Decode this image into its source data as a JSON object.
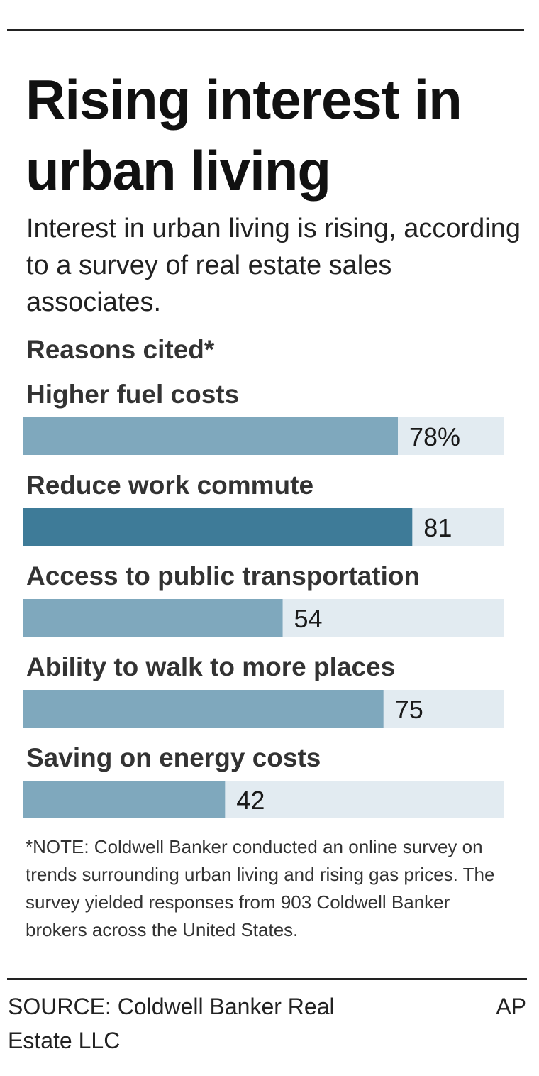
{
  "title": "Rising interest in urban living",
  "subtitle": "Interest in urban living is rising, according to a survey of real estate sales associates.",
  "section_label": "Reasons cited*",
  "note": "*NOTE: Coldwell Banker conducted an online survey on trends surrounding urban living and rising gas prices. The survey yielded responses from 903 Coldwell Banker brokers across the United States.",
  "source": "SOURCE: Coldwell Banker Real Estate LLC",
  "credit": "AP",
  "colors": {
    "bar": "#7fa8bd",
    "bar_highlight": "#3e7b98",
    "track": "#e2ebf1",
    "text": "#1a1a1a"
  },
  "chart_data": {
    "type": "bar",
    "orientation": "horizontal",
    "categories": [
      "Higher fuel costs",
      "Reduce work commute",
      "Access to public transportation",
      "Ability to walk to more places",
      "Saving on energy costs"
    ],
    "values": [
      78,
      81,
      54,
      75,
      42
    ],
    "value_labels": [
      "78%",
      "81",
      "54",
      "75",
      "42"
    ],
    "highlight_index": 1,
    "xlim": [
      0,
      100
    ],
    "grid": false
  }
}
